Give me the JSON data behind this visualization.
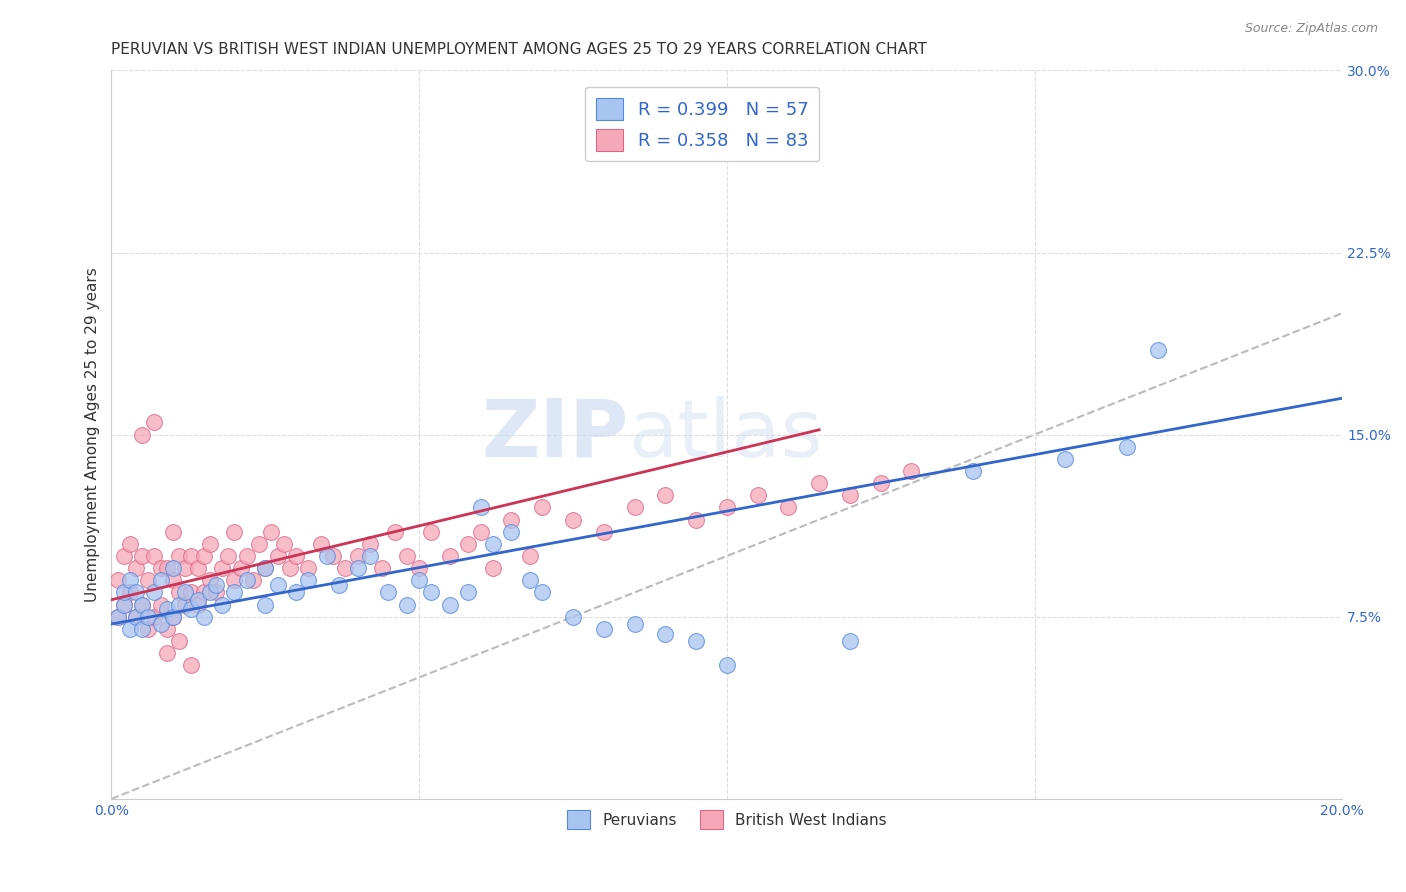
{
  "title": "PERUVIAN VS BRITISH WEST INDIAN UNEMPLOYMENT AMONG AGES 25 TO 29 YEARS CORRELATION CHART",
  "source": "Source: ZipAtlas.com",
  "ylabel": "Unemployment Among Ages 25 to 29 years",
  "xlim": [
    0.0,
    0.2
  ],
  "ylim": [
    0.0,
    0.3
  ],
  "xticks": [
    0.0,
    0.05,
    0.1,
    0.15,
    0.2
  ],
  "xticklabels": [
    "0.0%",
    "",
    "",
    "",
    "20.0%"
  ],
  "yticks": [
    0.0,
    0.075,
    0.15,
    0.225,
    0.3
  ],
  "yticklabels": [
    "",
    "7.5%",
    "15.0%",
    "22.5%",
    "30.0%"
  ],
  "peruvian_color": "#a8c4f0",
  "bwi_color": "#f5a8b8",
  "peruvian_edge_color": "#5588dd",
  "bwi_edge_color": "#dd6688",
  "peruvian_line_color": "#3366cc",
  "bwi_line_color": "#cc3355",
  "diagonal_color": "#bbbbbb",
  "R_peruvian": 0.399,
  "N_peruvian": 57,
  "R_bwi": 0.358,
  "N_bwi": 83,
  "peruvian_label": "Peruvians",
  "bwi_label": "British West Indians",
  "watermark_zip": "ZIP",
  "watermark_atlas": "atlas",
  "background_color": "#ffffff",
  "grid_color": "#dddddd",
  "title_fontsize": 11,
  "axis_label_fontsize": 11,
  "tick_fontsize": 10,
  "legend_fontsize": 13,
  "peruvian_x": [
    0.001,
    0.002,
    0.002,
    0.003,
    0.003,
    0.004,
    0.004,
    0.005,
    0.005,
    0.006,
    0.007,
    0.008,
    0.008,
    0.009,
    0.01,
    0.01,
    0.011,
    0.012,
    0.013,
    0.014,
    0.015,
    0.016,
    0.017,
    0.018,
    0.02,
    0.022,
    0.025,
    0.025,
    0.027,
    0.03,
    0.032,
    0.035,
    0.037,
    0.04,
    0.042,
    0.045,
    0.048,
    0.05,
    0.052,
    0.055,
    0.058,
    0.06,
    0.062,
    0.065,
    0.068,
    0.07,
    0.075,
    0.08,
    0.085,
    0.09,
    0.095,
    0.1,
    0.12,
    0.14,
    0.155,
    0.165,
    0.17
  ],
  "peruvian_y": [
    0.075,
    0.08,
    0.085,
    0.07,
    0.09,
    0.075,
    0.085,
    0.07,
    0.08,
    0.075,
    0.085,
    0.072,
    0.09,
    0.078,
    0.075,
    0.095,
    0.08,
    0.085,
    0.078,
    0.082,
    0.075,
    0.085,
    0.088,
    0.08,
    0.085,
    0.09,
    0.08,
    0.095,
    0.088,
    0.085,
    0.09,
    0.1,
    0.088,
    0.095,
    0.1,
    0.085,
    0.08,
    0.09,
    0.085,
    0.08,
    0.085,
    0.12,
    0.105,
    0.11,
    0.09,
    0.085,
    0.075,
    0.07,
    0.072,
    0.068,
    0.065,
    0.055,
    0.065,
    0.135,
    0.14,
    0.145,
    0.185
  ],
  "bwi_x": [
    0.001,
    0.001,
    0.002,
    0.002,
    0.003,
    0.003,
    0.004,
    0.004,
    0.005,
    0.005,
    0.006,
    0.006,
    0.007,
    0.007,
    0.008,
    0.008,
    0.009,
    0.009,
    0.01,
    0.01,
    0.01,
    0.011,
    0.011,
    0.012,
    0.012,
    0.013,
    0.013,
    0.014,
    0.014,
    0.015,
    0.015,
    0.016,
    0.016,
    0.017,
    0.018,
    0.019,
    0.02,
    0.02,
    0.021,
    0.022,
    0.023,
    0.024,
    0.025,
    0.026,
    0.027,
    0.028,
    0.029,
    0.03,
    0.032,
    0.034,
    0.036,
    0.038,
    0.04,
    0.042,
    0.044,
    0.046,
    0.048,
    0.05,
    0.052,
    0.055,
    0.058,
    0.06,
    0.062,
    0.065,
    0.068,
    0.07,
    0.075,
    0.08,
    0.085,
    0.09,
    0.095,
    0.1,
    0.105,
    0.11,
    0.115,
    0.12,
    0.125,
    0.13,
    0.005,
    0.007,
    0.009,
    0.011,
    0.013
  ],
  "bwi_y": [
    0.075,
    0.09,
    0.08,
    0.1,
    0.085,
    0.105,
    0.075,
    0.095,
    0.08,
    0.1,
    0.07,
    0.09,
    0.075,
    0.1,
    0.08,
    0.095,
    0.07,
    0.095,
    0.075,
    0.09,
    0.11,
    0.085,
    0.1,
    0.08,
    0.095,
    0.085,
    0.1,
    0.08,
    0.095,
    0.085,
    0.1,
    0.09,
    0.105,
    0.085,
    0.095,
    0.1,
    0.09,
    0.11,
    0.095,
    0.1,
    0.09,
    0.105,
    0.095,
    0.11,
    0.1,
    0.105,
    0.095,
    0.1,
    0.095,
    0.105,
    0.1,
    0.095,
    0.1,
    0.105,
    0.095,
    0.11,
    0.1,
    0.095,
    0.11,
    0.1,
    0.105,
    0.11,
    0.095,
    0.115,
    0.1,
    0.12,
    0.115,
    0.11,
    0.12,
    0.125,
    0.115,
    0.12,
    0.125,
    0.12,
    0.13,
    0.125,
    0.13,
    0.135,
    0.15,
    0.155,
    0.06,
    0.065,
    0.055
  ],
  "peruvian_line_x0": 0.0,
  "peruvian_line_x1": 0.2,
  "peruvian_line_y0": 0.072,
  "peruvian_line_y1": 0.165,
  "bwi_line_x0": 0.0,
  "bwi_line_x1": 0.115,
  "bwi_line_y0": 0.082,
  "bwi_line_y1": 0.152
}
